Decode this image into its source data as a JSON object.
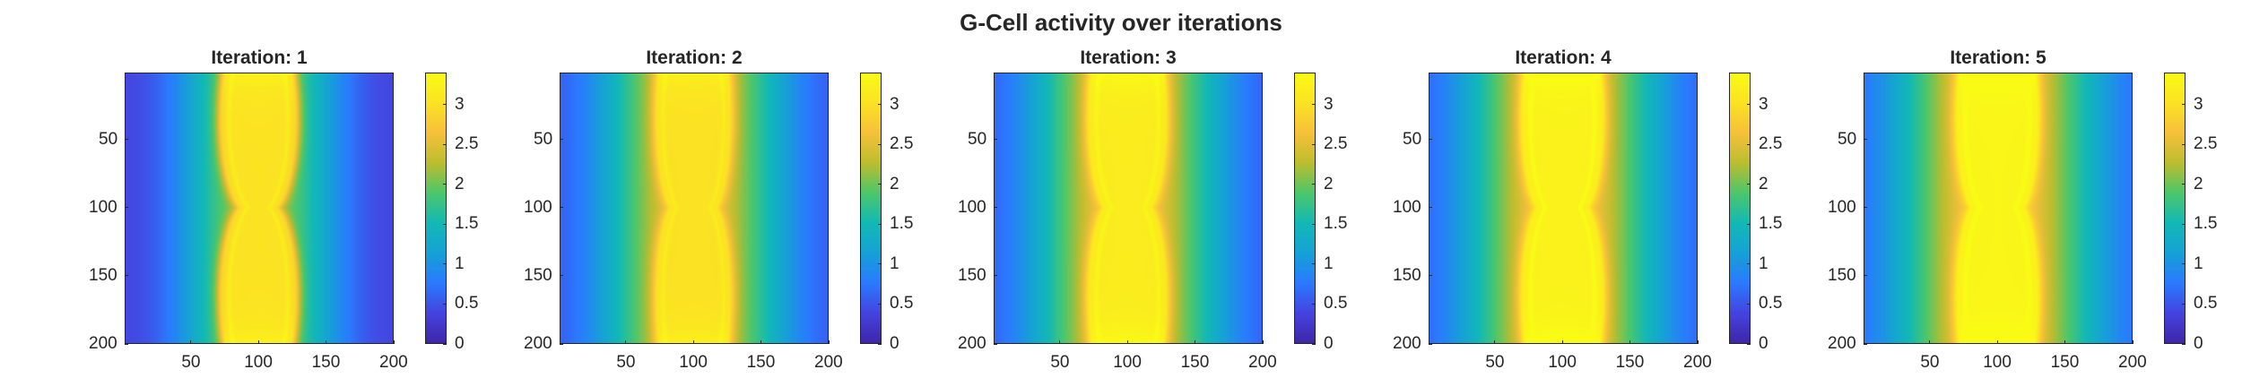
{
  "figure": {
    "title": "G-Cell activity over iterations",
    "colormap": [
      "#3e26a8",
      "#4543df",
      "#2a7aff",
      "#16a1d6",
      "#12b9b6",
      "#4cc66c",
      "#bcbd2f",
      "#f6c03a",
      "#fbe223",
      "#f9fb15"
    ]
  },
  "chart_data": [
    {
      "type": "heatmap",
      "title": "Iteration: 1",
      "title_prefix": "Iteration:",
      "iteration": 1,
      "xlim": [
        1,
        200
      ],
      "ylim": [
        1,
        200
      ],
      "y_direction": "reverse",
      "xticks": [
        50,
        100,
        150,
        200
      ],
      "yticks": [
        50,
        100,
        150,
        200
      ],
      "colorbar": {
        "limits": [
          0,
          3.4
        ],
        "ticks": [
          0,
          0.5,
          1,
          1.5,
          2,
          2.5,
          3
        ],
        "tick_labels": [
          "0",
          "0.5",
          "1",
          "1.5",
          "2",
          "2.5",
          "3"
        ]
      },
      "field": {
        "center_x": 100,
        "edge_value": 0.35,
        "center_value": 2.0,
        "falloff_width": 52,
        "outer_band_value": 1.55,
        "lobe_value": 3.1,
        "lobe_center_y": [
          35,
          165
        ],
        "lobe_radius_y": 70,
        "lobe_half_width": 30,
        "waist_half_width": 8,
        "waist_y": 100,
        "streak_offset": [
          7,
          24
        ]
      }
    },
    {
      "type": "heatmap",
      "title": "Iteration: 2",
      "title_prefix": "Iteration:",
      "iteration": 2,
      "xlim": [
        1,
        200
      ],
      "ylim": [
        1,
        200
      ],
      "y_direction": "reverse",
      "xticks": [
        50,
        100,
        150,
        200
      ],
      "yticks": [
        50,
        100,
        150,
        200
      ],
      "colorbar": {
        "limits": [
          0,
          3.4
        ],
        "ticks": [
          0,
          0.5,
          1,
          1.5,
          2,
          2.5,
          3
        ],
        "tick_labels": [
          "0",
          "0.5",
          "1",
          "1.5",
          "2",
          "2.5",
          "3"
        ]
      },
      "field": {
        "center_x": 100,
        "edge_value": 0.45,
        "center_value": 2.4,
        "falloff_width": 60,
        "outer_band_value": 1.7,
        "lobe_value": 3.05,
        "lobe_center_y": [
          35,
          165
        ],
        "lobe_radius_y": 70,
        "lobe_half_width": 30,
        "waist_half_width": 14,
        "waist_y": 100,
        "streak_offset": [
          8,
          22
        ]
      }
    },
    {
      "type": "heatmap",
      "title": "Iteration: 3",
      "title_prefix": "Iteration:",
      "iteration": 3,
      "xlim": [
        1,
        200
      ],
      "ylim": [
        1,
        200
      ],
      "y_direction": "reverse",
      "xticks": [
        50,
        100,
        150,
        200
      ],
      "yticks": [
        50,
        100,
        150,
        200
      ],
      "colorbar": {
        "limits": [
          0,
          3.4
        ],
        "ticks": [
          0,
          0.5,
          1,
          1.5,
          2,
          2.5,
          3
        ],
        "tick_labels": [
          "0",
          "0.5",
          "1",
          "1.5",
          "2",
          "2.5",
          "3"
        ]
      },
      "field": {
        "center_x": 100,
        "edge_value": 0.45,
        "center_value": 2.5,
        "falloff_width": 62,
        "outer_band_value": 1.75,
        "lobe_value": 3.2,
        "lobe_center_y": [
          35,
          165
        ],
        "lobe_radius_y": 70,
        "lobe_half_width": 31,
        "waist_half_width": 13,
        "waist_y": 100,
        "streak_offset": [
          7,
          23
        ]
      }
    },
    {
      "type": "heatmap",
      "title": "Iteration: 4",
      "title_prefix": "Iteration:",
      "iteration": 4,
      "xlim": [
        1,
        200
      ],
      "ylim": [
        1,
        200
      ],
      "y_direction": "reverse",
      "xticks": [
        50,
        100,
        150,
        200
      ],
      "yticks": [
        50,
        100,
        150,
        200
      ],
      "colorbar": {
        "limits": [
          0,
          3.4
        ],
        "ticks": [
          0,
          0.5,
          1,
          1.5,
          2,
          2.5,
          3
        ],
        "tick_labels": [
          "0",
          "0.5",
          "1",
          "1.5",
          "2",
          "2.5",
          "3"
        ]
      },
      "field": {
        "center_x": 100,
        "edge_value": 0.45,
        "center_value": 2.55,
        "falloff_width": 64,
        "outer_band_value": 1.8,
        "lobe_value": 3.3,
        "lobe_center_y": [
          35,
          165
        ],
        "lobe_radius_y": 70,
        "lobe_half_width": 32,
        "waist_half_width": 14,
        "waist_y": 100,
        "streak_offset": [
          6,
          24
        ]
      }
    },
    {
      "type": "heatmap",
      "title": "Iteration: 5",
      "title_prefix": "Iteration:",
      "iteration": 5,
      "xlim": [
        1,
        200
      ],
      "ylim": [
        1,
        200
      ],
      "y_direction": "reverse",
      "xticks": [
        50,
        100,
        150,
        200
      ],
      "yticks": [
        50,
        100,
        150,
        200
      ],
      "colorbar": {
        "limits": [
          0,
          3.4
        ],
        "ticks": [
          0,
          0.5,
          1,
          1.5,
          2,
          2.5,
          3
        ],
        "tick_labels": [
          "0",
          "0.5",
          "1",
          "1.5",
          "2",
          "2.5",
          "3"
        ]
      },
      "field": {
        "center_x": 100,
        "edge_value": 0.5,
        "center_value": 2.6,
        "falloff_width": 66,
        "outer_band_value": 1.85,
        "lobe_value": 3.35,
        "lobe_center_y": [
          35,
          165
        ],
        "lobe_radius_y": 70,
        "lobe_half_width": 32,
        "waist_half_width": 15,
        "waist_y": 100,
        "streak_offset": [
          6,
          24
        ]
      }
    }
  ]
}
